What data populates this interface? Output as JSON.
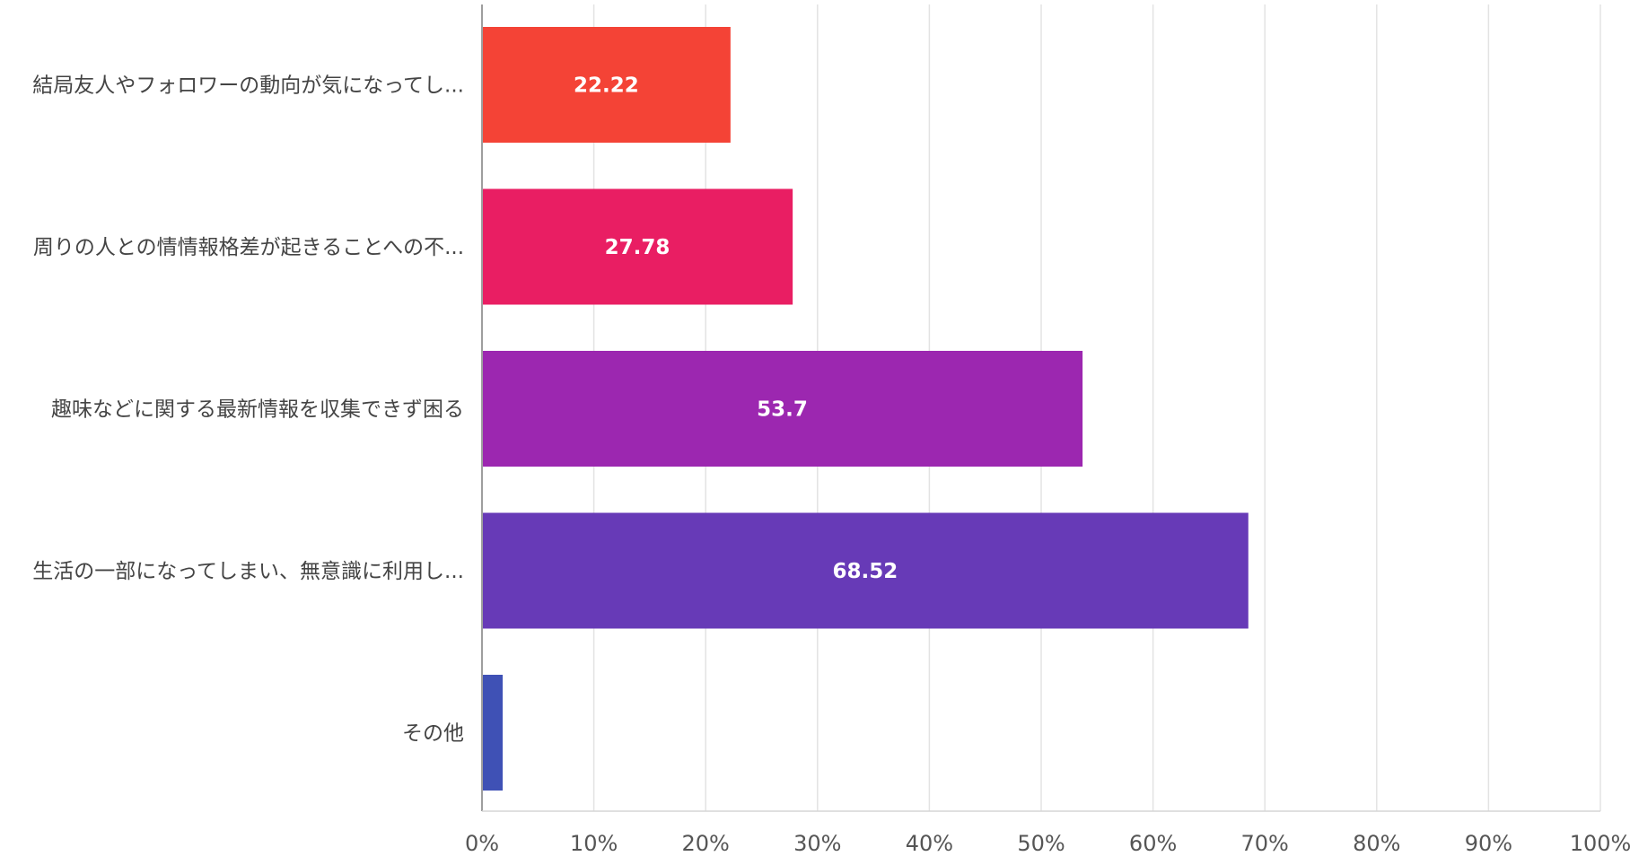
{
  "chart_data": {
    "type": "bar",
    "orientation": "horizontal",
    "categories": [
      "結局友人やフォロワーの動向が気になってし...",
      "周りの人との情情報格差が起きることへの不...",
      "趣味などに関する最新情報を収集できず困る",
      "生活の一部になってしまい、無意識に利用し...",
      "その他"
    ],
    "values": [
      22.22,
      27.78,
      53.7,
      68.52,
      1.85
    ],
    "data_labels": [
      "22.22",
      "27.78",
      "53.7",
      "68.52",
      ""
    ],
    "colors": [
      "#f44336",
      "#e91e63",
      "#9c27b0",
      "#673ab7",
      "#3f51b5"
    ],
    "xlim": [
      0,
      100
    ],
    "x_ticks": [
      0,
      10,
      20,
      30,
      40,
      50,
      60,
      70,
      80,
      90,
      100
    ],
    "x_tick_labels": [
      "0%",
      "10%",
      "20%",
      "30%",
      "40%",
      "50%",
      "60%",
      "70%",
      "80%",
      "90%",
      "100%"
    ],
    "grid": true,
    "title": "",
    "xlabel": "",
    "ylabel": ""
  }
}
